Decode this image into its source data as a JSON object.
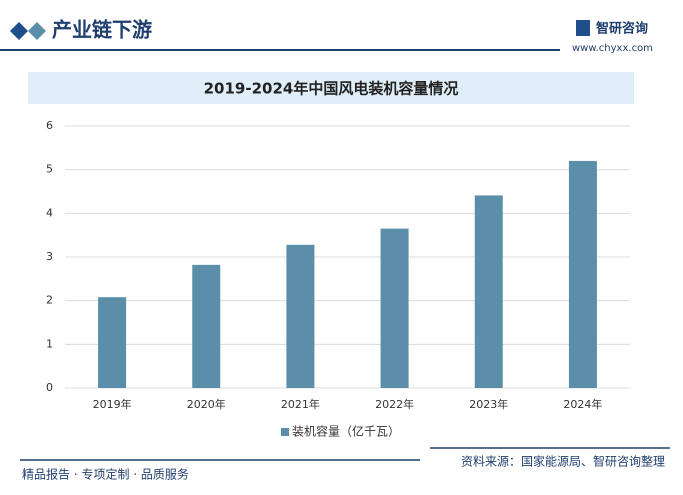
{
  "header": {
    "section": "产业链下游",
    "brand": "智研咨询",
    "url": "www.chyxx.com"
  },
  "footer": {
    "slogan": "精品报告 · 专项定制 · 品质服务",
    "source": "资料来源：国家能源局、智研咨询整理"
  },
  "chart_data": {
    "type": "bar",
    "title": "2019-2024年中国风电装机容量情况",
    "categories": [
      "2019年",
      "2020年",
      "2021年",
      "2022年",
      "2023年",
      "2024年"
    ],
    "series": [
      {
        "name": "装机容量（亿千瓦）",
        "color": "#5b8fa9",
        "values": [
          2.08,
          2.82,
          3.28,
          3.65,
          4.41,
          5.2
        ]
      }
    ],
    "ylim": [
      0,
      6
    ],
    "yticks": [
      0,
      1,
      2,
      3,
      4,
      5,
      6
    ],
    "grid": true
  }
}
